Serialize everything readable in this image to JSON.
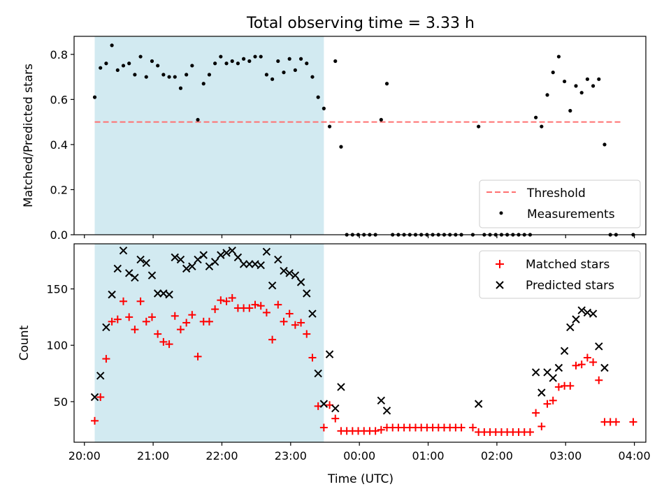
{
  "chart_data": [
    {
      "type": "scatter",
      "title": "Total observing time = 3.33 h",
      "ylabel": "Matched/Predicted stars",
      "xlabel": "",
      "ylim": [
        0,
        0.88
      ],
      "yticks": [
        "0.0",
        "0.2",
        "0.4",
        "0.6",
        "0.8"
      ],
      "ytick_values": [
        0,
        0.2,
        0.4,
        0.6,
        0.8
      ],
      "shaded_span": [
        "20:09",
        "23:29"
      ],
      "shade_color": "#add8e6",
      "threshold": {
        "name": "Threshold",
        "value": 0.5,
        "x_range": [
          "20:09",
          "03:49"
        ],
        "color": "#ff7070"
      },
      "legend": {
        "placement": "lower-right",
        "entries": [
          "Threshold",
          "Measurements"
        ]
      },
      "series": [
        {
          "name": "Measurements",
          "color": "#000000",
          "points": [
            [
              "20:09",
              0.61
            ],
            [
              "20:14",
              0.74
            ],
            [
              "20:19",
              0.76
            ],
            [
              "20:24",
              0.84
            ],
            [
              "20:29",
              0.73
            ],
            [
              "20:34",
              0.75
            ],
            [
              "20:39",
              0.76
            ],
            [
              "20:44",
              0.71
            ],
            [
              "20:49",
              0.79
            ],
            [
              "20:54",
              0.7
            ],
            [
              "20:59",
              0.77
            ],
            [
              "21:04",
              0.75
            ],
            [
              "21:09",
              0.71
            ],
            [
              "21:14",
              0.7
            ],
            [
              "21:19",
              0.7
            ],
            [
              "21:24",
              0.65
            ],
            [
              "21:29",
              0.71
            ],
            [
              "21:34",
              0.75
            ],
            [
              "21:39",
              0.51
            ],
            [
              "21:44",
              0.67
            ],
            [
              "21:49",
              0.71
            ],
            [
              "21:54",
              0.76
            ],
            [
              "21:59",
              0.79
            ],
            [
              "22:04",
              0.76
            ],
            [
              "22:09",
              0.77
            ],
            [
              "22:14",
              0.76
            ],
            [
              "22:19",
              0.78
            ],
            [
              "22:24",
              0.77
            ],
            [
              "22:29",
              0.79
            ],
            [
              "22:34",
              0.79
            ],
            [
              "22:39",
              0.71
            ],
            [
              "22:44",
              0.69
            ],
            [
              "22:49",
              0.77
            ],
            [
              "22:54",
              0.72
            ],
            [
              "22:59",
              0.78
            ],
            [
              "23:04",
              0.73
            ],
            [
              "23:09",
              0.78
            ],
            [
              "23:14",
              0.76
            ],
            [
              "23:19",
              0.7
            ],
            [
              "23:24",
              0.61
            ],
            [
              "23:29",
              0.56
            ],
            [
              "23:34",
              0.48
            ],
            [
              "23:39",
              0.77
            ],
            [
              "23:44",
              0.39
            ],
            [
              "23:49",
              0.0
            ],
            [
              "23:54",
              0.0
            ],
            [
              "23:59",
              0.0
            ],
            [
              "00:04",
              0.0
            ],
            [
              "00:09",
              0.0
            ],
            [
              "00:14",
              0.0
            ],
            [
              "00:19",
              0.51
            ],
            [
              "00:24",
              0.67
            ],
            [
              "00:29",
              0.0
            ],
            [
              "00:34",
              0.0
            ],
            [
              "00:39",
              0.0
            ],
            [
              "00:44",
              0.0
            ],
            [
              "00:49",
              0.0
            ],
            [
              "00:54",
              0.0
            ],
            [
              "00:59",
              0.0
            ],
            [
              "01:04",
              0.0
            ],
            [
              "01:09",
              0.0
            ],
            [
              "01:14",
              0.0
            ],
            [
              "01:19",
              0.0
            ],
            [
              "01:24",
              0.0
            ],
            [
              "01:29",
              0.0
            ],
            [
              "01:39",
              0.0
            ],
            [
              "01:44",
              0.48
            ],
            [
              "01:49",
              0.0
            ],
            [
              "01:54",
              0.0
            ],
            [
              "01:59",
              0.0
            ],
            [
              "02:04",
              0.0
            ],
            [
              "02:09",
              0.0
            ],
            [
              "02:14",
              0.0
            ],
            [
              "02:19",
              0.0
            ],
            [
              "02:24",
              0.0
            ],
            [
              "02:29",
              0.0
            ],
            [
              "02:34",
              0.52
            ],
            [
              "02:39",
              0.48
            ],
            [
              "02:44",
              0.62
            ],
            [
              "02:49",
              0.72
            ],
            [
              "02:54",
              0.79
            ],
            [
              "02:59",
              0.68
            ],
            [
              "03:04",
              0.55
            ],
            [
              "03:09",
              0.66
            ],
            [
              "03:14",
              0.63
            ],
            [
              "03:19",
              0.69
            ],
            [
              "03:24",
              0.66
            ],
            [
              "03:29",
              0.69
            ],
            [
              "03:34",
              0.4
            ],
            [
              "03:39",
              0.0
            ],
            [
              "03:44",
              0.0
            ],
            [
              "03:59",
              0.0
            ]
          ]
        }
      ]
    },
    {
      "type": "scatter",
      "title": "",
      "xlabel": "Time (UTC)",
      "ylabel": "Count",
      "ylim": [
        14,
        190
      ],
      "yticks": [
        "50",
        "100",
        "150"
      ],
      "ytick_values": [
        50,
        100,
        150
      ],
      "xticks": [
        "20:00",
        "21:00",
        "22:00",
        "23:00",
        "00:00",
        "01:00",
        "02:00",
        "03:00",
        "04:00"
      ],
      "xlim": [
        "19:51",
        "04:10"
      ],
      "shaded_span": [
        "20:09",
        "23:29"
      ],
      "shade_color": "#add8e6",
      "legend": {
        "placement": "upper-right",
        "entries": [
          "Matched stars",
          "Predicted stars"
        ]
      },
      "series": [
        {
          "name": "Matched stars",
          "color": "#ff0000",
          "marker": "plus",
          "points": [
            [
              "20:09",
              33
            ],
            [
              "20:14",
              54
            ],
            [
              "20:19",
              88
            ],
            [
              "20:24",
              121
            ],
            [
              "20:29",
              123
            ],
            [
              "20:34",
              139
            ],
            [
              "20:39",
              125
            ],
            [
              "20:44",
              114
            ],
            [
              "20:49",
              139
            ],
            [
              "20:54",
              121
            ],
            [
              "20:59",
              125
            ],
            [
              "21:04",
              110
            ],
            [
              "21:09",
              103
            ],
            [
              "21:14",
              101
            ],
            [
              "21:19",
              126
            ],
            [
              "21:24",
              114
            ],
            [
              "21:29",
              120
            ],
            [
              "21:34",
              127
            ],
            [
              "21:39",
              90
            ],
            [
              "21:44",
              121
            ],
            [
              "21:49",
              121
            ],
            [
              "21:54",
              132
            ],
            [
              "21:59",
              140
            ],
            [
              "22:04",
              139
            ],
            [
              "22:09",
              142
            ],
            [
              "22:14",
              133
            ],
            [
              "22:19",
              133
            ],
            [
              "22:24",
              133
            ],
            [
              "22:29",
              136
            ],
            [
              "22:34",
              135
            ],
            [
              "22:39",
              129
            ],
            [
              "22:44",
              105
            ],
            [
              "22:49",
              136
            ],
            [
              "22:54",
              121
            ],
            [
              "22:59",
              128
            ],
            [
              "23:04",
              118
            ],
            [
              "23:09",
              120
            ],
            [
              "23:14",
              110
            ],
            [
              "23:19",
              89
            ],
            [
              "23:24",
              46
            ],
            [
              "23:29",
              27
            ],
            [
              "23:34",
              47
            ],
            [
              "23:39",
              35
            ],
            [
              "23:44",
              24
            ],
            [
              "23:49",
              24
            ],
            [
              "23:54",
              24
            ],
            [
              "23:59",
              24
            ],
            [
              "00:04",
              24
            ],
            [
              "00:09",
              24
            ],
            [
              "00:14",
              24
            ],
            [
              "00:19",
              25
            ],
            [
              "00:24",
              27
            ],
            [
              "00:29",
              27
            ],
            [
              "00:34",
              27
            ],
            [
              "00:39",
              27
            ],
            [
              "00:44",
              27
            ],
            [
              "00:49",
              27
            ],
            [
              "00:54",
              27
            ],
            [
              "00:59",
              27
            ],
            [
              "01:04",
              27
            ],
            [
              "01:09",
              27
            ],
            [
              "01:14",
              27
            ],
            [
              "01:19",
              27
            ],
            [
              "01:24",
              27
            ],
            [
              "01:29",
              27
            ],
            [
              "01:39",
              27
            ],
            [
              "01:44",
              23
            ],
            [
              "01:49",
              23
            ],
            [
              "01:54",
              23
            ],
            [
              "01:59",
              23
            ],
            [
              "02:04",
              23
            ],
            [
              "02:09",
              23
            ],
            [
              "02:14",
              23
            ],
            [
              "02:19",
              23
            ],
            [
              "02:24",
              23
            ],
            [
              "02:29",
              23
            ],
            [
              "02:34",
              40
            ],
            [
              "02:39",
              28
            ],
            [
              "02:44",
              48
            ],
            [
              "02:49",
              51
            ],
            [
              "02:54",
              63
            ],
            [
              "02:59",
              64
            ],
            [
              "03:04",
              64
            ],
            [
              "03:09",
              82
            ],
            [
              "03:14",
              83
            ],
            [
              "03:19",
              89
            ],
            [
              "03:24",
              85
            ],
            [
              "03:29",
              69
            ],
            [
              "03:34",
              32
            ],
            [
              "03:39",
              32
            ],
            [
              "03:44",
              32
            ],
            [
              "03:59",
              32
            ]
          ]
        },
        {
          "name": "Predicted stars",
          "color": "#000000",
          "marker": "x",
          "points": [
            [
              "20:09",
              54
            ],
            [
              "20:14",
              73
            ],
            [
              "20:19",
              116
            ],
            [
              "20:24",
              145
            ],
            [
              "20:29",
              168
            ],
            [
              "20:34",
              184
            ],
            [
              "20:39",
              164
            ],
            [
              "20:44",
              160
            ],
            [
              "20:49",
              176
            ],
            [
              "20:54",
              173
            ],
            [
              "20:59",
              162
            ],
            [
              "21:04",
              146
            ],
            [
              "21:09",
              146
            ],
            [
              "21:14",
              145
            ],
            [
              "21:19",
              178
            ],
            [
              "21:24",
              176
            ],
            [
              "21:29",
              168
            ],
            [
              "21:34",
              170
            ],
            [
              "21:39",
              176
            ],
            [
              "21:44",
              180
            ],
            [
              "21:49",
              170
            ],
            [
              "21:54",
              174
            ],
            [
              "21:59",
              180
            ],
            [
              "22:04",
              182
            ],
            [
              "22:09",
              184
            ],
            [
              "22:14",
              178
            ],
            [
              "22:19",
              172
            ],
            [
              "22:24",
              172
            ],
            [
              "22:29",
              172
            ],
            [
              "22:34",
              171
            ],
            [
              "22:39",
              183
            ],
            [
              "22:44",
              153
            ],
            [
              "22:49",
              176
            ],
            [
              "22:54",
              166
            ],
            [
              "22:59",
              164
            ],
            [
              "23:04",
              162
            ],
            [
              "23:09",
              156
            ],
            [
              "23:14",
              146
            ],
            [
              "23:19",
              128
            ],
            [
              "23:24",
              75
            ],
            [
              "23:29",
              48
            ],
            [
              "23:34",
              92
            ],
            [
              "23:39",
              44
            ],
            [
              "23:44",
              63
            ],
            [
              "00:19",
              51
            ],
            [
              "00:24",
              42
            ],
            [
              "01:44",
              48
            ],
            [
              "02:34",
              76
            ],
            [
              "02:39",
              58
            ],
            [
              "02:44",
              76
            ],
            [
              "02:49",
              71
            ],
            [
              "02:54",
              80
            ],
            [
              "02:59",
              95
            ],
            [
              "03:04",
              116
            ],
            [
              "03:09",
              123
            ],
            [
              "03:14",
              131
            ],
            [
              "03:19",
              129
            ],
            [
              "03:24",
              128
            ],
            [
              "03:29",
              99
            ],
            [
              "03:34",
              80
            ]
          ]
        }
      ]
    }
  ]
}
